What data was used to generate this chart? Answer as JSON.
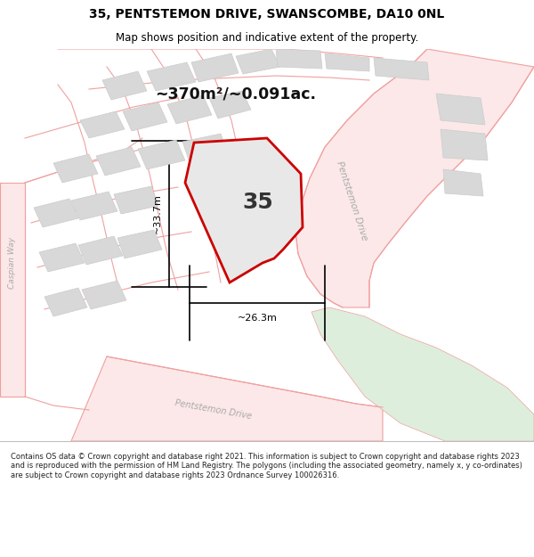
{
  "title": "35, PENTSTEMON DRIVE, SWANSCOMBE, DA10 0NL",
  "subtitle": "Map shows position and indicative extent of the property.",
  "footer": "Contains OS data © Crown copyright and database right 2021. This information is subject to Crown copyright and database rights 2023 and is reproduced with the permission of HM Land Registry. The polygons (including the associated geometry, namely x, y co-ordinates) are subject to Crown copyright and database rights 2023 Ordnance Survey 100026316.",
  "area_label": "~370m²/~0.091ac.",
  "property_number": "35",
  "dim_width": "~26.3m",
  "dim_height": "~33.7m",
  "map_bg": "#ffffff",
  "road_line_color": "#f0a0a0",
  "road_fill_color": "#fce8e8",
  "block_fill": "#d8d8d8",
  "block_edge": "#cccccc",
  "plot_fill": "#e8e8e8",
  "red_outline": "#cc0000",
  "green_area": "#ddeedd",
  "title_color": "#000000",
  "footer_color": "#222222",
  "dim_color": "#000000",
  "pentstemon_label_color": "#aaaaaa",
  "caspian_label_color": "#aaaaaa"
}
